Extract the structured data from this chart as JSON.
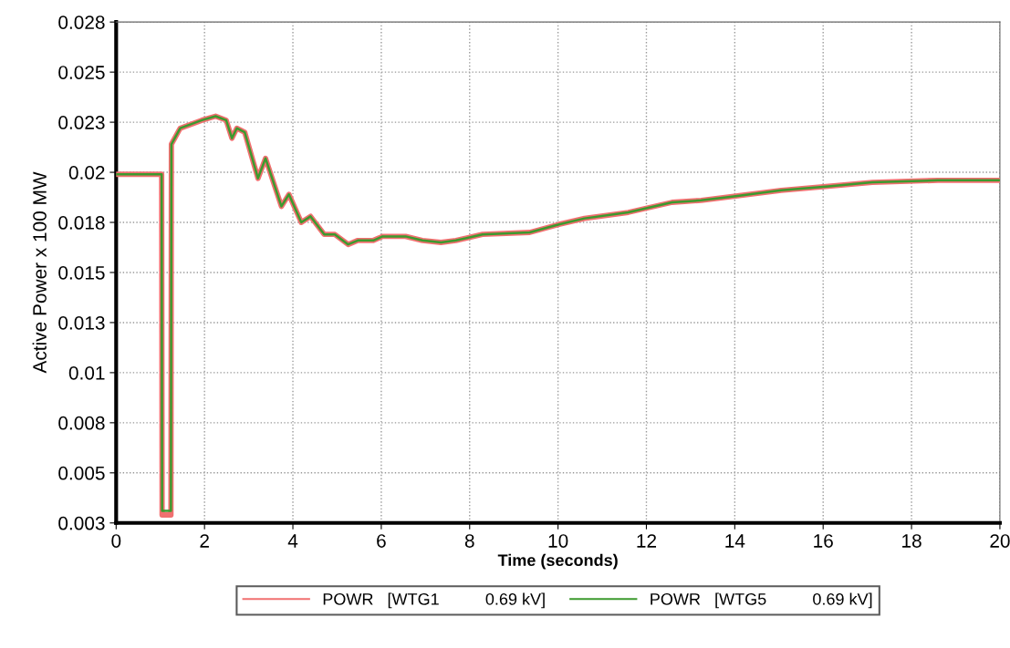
{
  "chart_data": {
    "type": "line",
    "xlabel": "Time (seconds)",
    "ylabel": "Active Power x 100 MW",
    "xlim": [
      0,
      20
    ],
    "xticks": [
      0,
      2,
      4,
      6,
      8,
      10,
      12,
      14,
      16,
      18,
      20
    ],
    "ylim": [
      0.003,
      0.028
    ],
    "yticks": [
      {
        "value": 0.003,
        "label": "0.003"
      },
      {
        "value": 0.0055,
        "label": "0.005"
      },
      {
        "value": 0.008,
        "label": "0.008"
      },
      {
        "value": 0.0105,
        "label": "0.01"
      },
      {
        "value": 0.013,
        "label": "0.013"
      },
      {
        "value": 0.0155,
        "label": "0.015"
      },
      {
        "value": 0.018,
        "label": "0.018"
      },
      {
        "value": 0.0205,
        "label": "0.02"
      },
      {
        "value": 0.023,
        "label": "0.023"
      },
      {
        "value": 0.0255,
        "label": "0.025"
      },
      {
        "value": 0.028,
        "label": "0.028"
      }
    ],
    "grid": true,
    "legend": "bottom",
    "line_style": "solid",
    "marker": "none",
    "x": [
      0,
      1.03,
      1.04,
      1.24,
      1.25,
      1.45,
      1.94,
      2.25,
      2.49,
      2.62,
      2.73,
      2.91,
      3.21,
      3.38,
      3.53,
      3.74,
      3.91,
      4.19,
      4.4,
      4.71,
      4.95,
      5.25,
      5.47,
      5.82,
      6.03,
      6.55,
      6.93,
      7.35,
      7.69,
      8.29,
      9.36,
      10.02,
      10.6,
      11.59,
      12.58,
      13.24,
      13.98,
      15.05,
      16.12,
      17.11,
      18.6,
      20
    ],
    "series": [
      {
        "name": "POWR   [WTG1          0.69 kV]",
        "color": "#f07070",
        "values": [
          0.0204,
          0.0204,
          0.0034,
          0.0034,
          0.0219,
          0.0227,
          0.0231,
          0.0233,
          0.0231,
          0.0222,
          0.0227,
          0.0225,
          0.0202,
          0.0212,
          0.0202,
          0.0188,
          0.0194,
          0.018,
          0.0183,
          0.0174,
          0.0174,
          0.0169,
          0.0171,
          0.0171,
          0.0173,
          0.0173,
          0.0171,
          0.017,
          0.0171,
          0.0174,
          0.0175,
          0.0179,
          0.0182,
          0.0185,
          0.019,
          0.0191,
          0.0193,
          0.0196,
          0.0198,
          0.02,
          0.0201,
          0.0201
        ]
      },
      {
        "name": "POWR   [WTG5          0.69 kV]",
        "color": "#3c9a2e",
        "values": [
          0.0204,
          0.0204,
          0.0036,
          0.0036,
          0.0219,
          0.0227,
          0.0231,
          0.0233,
          0.0231,
          0.0222,
          0.0227,
          0.0225,
          0.0202,
          0.0212,
          0.0202,
          0.0188,
          0.0194,
          0.018,
          0.0183,
          0.0174,
          0.0174,
          0.0169,
          0.0171,
          0.0171,
          0.0173,
          0.0173,
          0.0171,
          0.017,
          0.0171,
          0.0174,
          0.0175,
          0.0179,
          0.0182,
          0.0185,
          0.019,
          0.0191,
          0.0193,
          0.0196,
          0.0198,
          0.02,
          0.0201,
          0.0201
        ]
      }
    ]
  }
}
